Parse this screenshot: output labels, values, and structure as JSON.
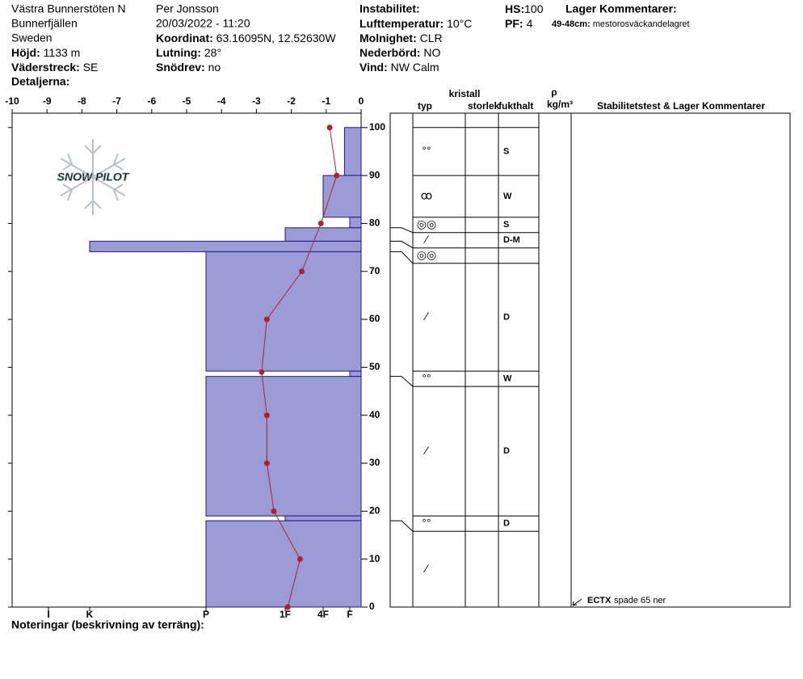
{
  "header": {
    "site": "Västra Bunnerstöten N",
    "area": "Bunnerfjällen",
    "country": "Sweden",
    "elevation": {
      "label": "Höjd:",
      "value": "1133 m"
    },
    "aspect": {
      "label": "Väderstreck:",
      "value": "SE"
    },
    "details": {
      "label": "Detaljerna:"
    },
    "observer": "Per Jonsson",
    "datetime": "20/03/2022 - 11:20",
    "coordinates": {
      "label": "Koordinat:",
      "value": "63.16095N, 12.52630W"
    },
    "slope": {
      "label": "Lutning:",
      "value": "28°"
    },
    "drift": {
      "label": "Snödrev:",
      "value": "no"
    },
    "instability": {
      "label": "Instabilitet:"
    },
    "air_temp": {
      "label": "Lufttemperatur:",
      "value": "10°C"
    },
    "sky": {
      "label": "Molnighet:",
      "value": "CLR"
    },
    "precip": {
      "label": "Nederbörd:",
      "value": "NO"
    },
    "wind": {
      "label": "Vind:",
      "value": "NW Calm"
    },
    "hs": {
      "label": "HS:",
      "value": "100"
    },
    "pf": {
      "label": "PF:",
      "value": "4"
    },
    "layer_comments_title": "Lager Kommentarer:",
    "layer_comment": {
      "label": "49-48cm:",
      "value": "mestorosväckandelagret"
    }
  },
  "chart_data": {
    "type": "snowprofile",
    "logo": "SNOW PILOT",
    "xlim": [
      -10,
      0
    ],
    "xticks": [
      -10,
      -9,
      -8,
      -7,
      -6,
      -5,
      -4,
      -3,
      -2,
      -1,
      0
    ],
    "ylim": [
      0,
      103
    ],
    "yticks": [
      0,
      10,
      20,
      30,
      40,
      50,
      60,
      70,
      80,
      90,
      100
    ],
    "hardness_ticks": [
      {
        "value": 6,
        "label": "I"
      },
      {
        "value": 5,
        "label": "K"
      },
      {
        "value": 4,
        "label": "P"
      },
      {
        "value": 3,
        "label": "1F"
      },
      {
        "value": 2,
        "label": "4F"
      },
      {
        "value": 1,
        "label": "F"
      }
    ],
    "temperature": {
      "color": "#b22222",
      "heights": [
        100,
        90,
        80,
        70,
        60,
        49,
        40,
        30,
        20,
        10,
        0
      ],
      "values": [
        -0.9,
        -0.7,
        -1.15,
        -1.7,
        -2.7,
        -2.85,
        -2.7,
        -2.7,
        -2.5,
        -1.75,
        -2.1
      ]
    },
    "layer_color": "#9b9bd6",
    "layers": [
      {
        "top": 100,
        "bottom": 90,
        "hardness": 1.2,
        "grain": "°°",
        "moisture": "S"
      },
      {
        "top": 90,
        "bottom": 81.3,
        "hardness": 2,
        "grain": "ꝏ",
        "moisture": "W"
      },
      {
        "top": 81.3,
        "bottom": 79.1,
        "hardness": 1,
        "grain": "◎◎",
        "moisture": "S"
      },
      {
        "top": 79.1,
        "bottom": 76.3,
        "hardness": 3,
        "grain": "∕",
        "moisture": "D-M"
      },
      {
        "top": 76.3,
        "bottom": 74.1,
        "hardness": 5,
        "grain": "◎◎",
        "moisture": null
      },
      {
        "top": 74.1,
        "bottom": 49.2,
        "hardness": 4,
        "grain": "∕",
        "moisture": "D"
      },
      {
        "top": 49.2,
        "bottom": 48.1,
        "hardness": 1,
        "grain": "°°",
        "moisture": "W"
      },
      {
        "top": 48.1,
        "bottom": 19,
        "hardness": 4,
        "grain": "∕",
        "moisture": "D"
      },
      {
        "top": 19,
        "bottom": 18,
        "hardness": 3,
        "grain": "°°",
        "moisture": "D"
      },
      {
        "top": 18,
        "bottom": 0,
        "hardness": 4,
        "grain": "∕",
        "moisture": null
      }
    ],
    "columns": {
      "crystal": "kristall",
      "type": "typ",
      "size": "storlek",
      "moisture": "fukthalt",
      "rho": "ρ",
      "density_unit": "kg/m³",
      "comments": "Stabilitetstest & Lager Kommentarer"
    },
    "test": {
      "name": "ECTX",
      "detail": "spade 65 ner"
    },
    "notes_label": "Noteringar (beskrivning av terräng):"
  }
}
